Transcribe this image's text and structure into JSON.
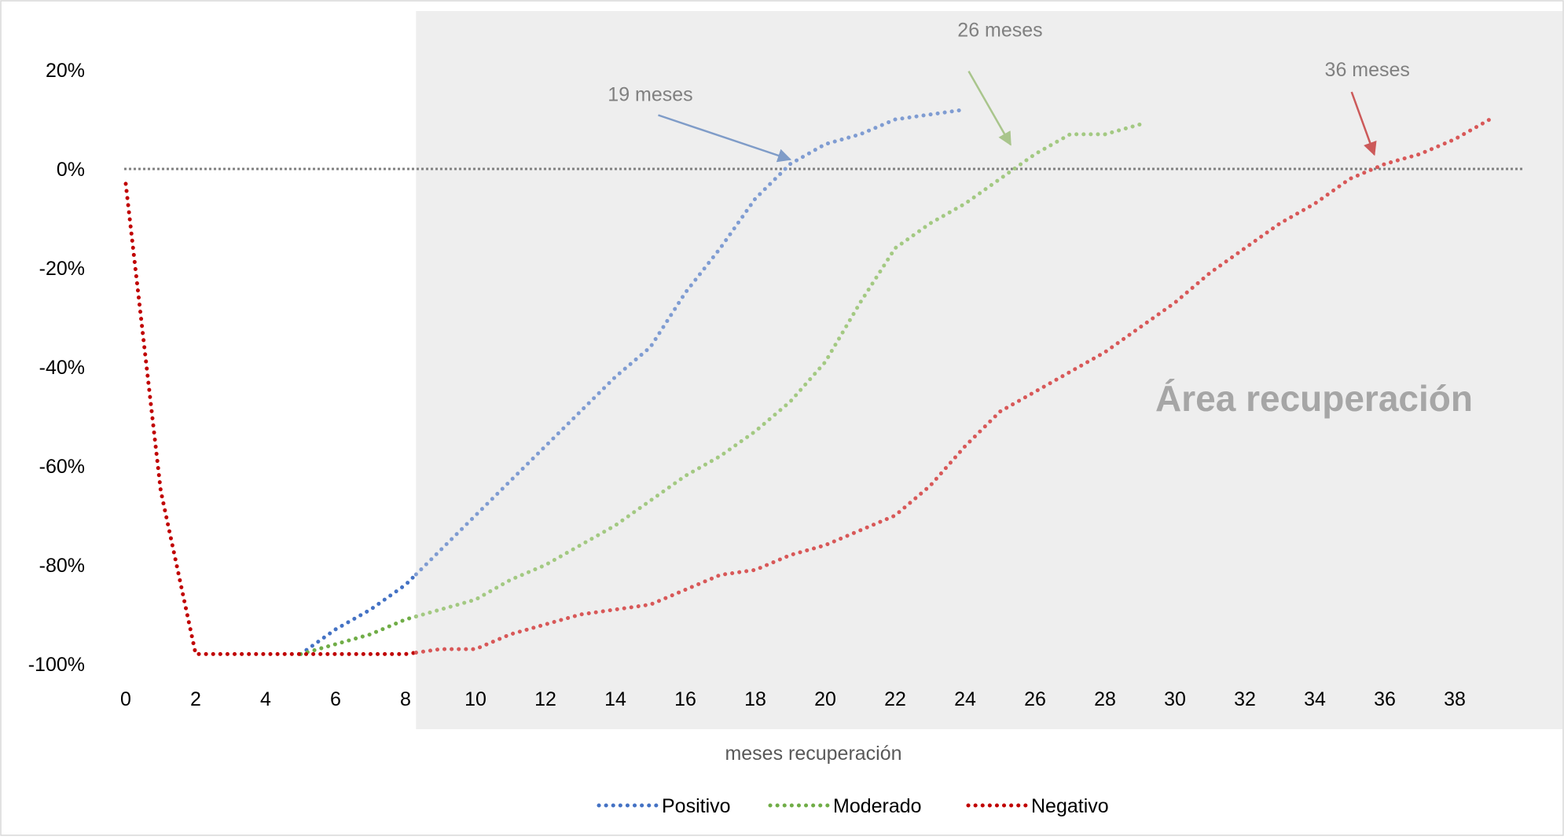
{
  "chart_data": {
    "type": "line",
    "xlabel": "meses recuperación",
    "ylabel": "",
    "xlim": [
      0,
      40
    ],
    "ylim": [
      -100,
      20
    ],
    "x_ticks": [
      0,
      2,
      4,
      6,
      8,
      10,
      12,
      14,
      16,
      18,
      20,
      22,
      24,
      26,
      28,
      30,
      32,
      34,
      36,
      38
    ],
    "y_ticks": [
      -100,
      -80,
      -60,
      -40,
      -20,
      0,
      20
    ],
    "y_tick_format": "percent",
    "grid": false,
    "legend_position": "bottom",
    "reference_line": {
      "y": 0,
      "style": "dotted",
      "color": "#808080"
    },
    "shaded_region": {
      "x_start": 8.3,
      "x_end": 40,
      "label": "Área recuperación",
      "color": "#eeeeee",
      "label_color": "#a6a6a6"
    },
    "annotations": [
      {
        "text": "19 meses",
        "x": 19,
        "y": 0,
        "text_x": 15,
        "text_y": 15,
        "color": "#7f9cc8"
      },
      {
        "text": "26 meses",
        "x": 25.3,
        "y": 3,
        "text_x": 25,
        "text_y": 28,
        "color": "#a9c58c"
      },
      {
        "text": "36 meses",
        "x": 35.7,
        "y": 1,
        "text_x": 35.5,
        "text_y": 20,
        "color": "#cc5a5a"
      }
    ],
    "series": [
      {
        "name": "Positivo",
        "color": "#4472c4",
        "color_shaded": "#7f9cd2",
        "x": [
          5,
          6,
          7,
          8,
          9,
          10,
          11,
          12,
          13,
          14,
          15,
          16,
          17,
          18,
          19,
          20,
          21,
          22,
          23,
          24
        ],
        "values": [
          -98,
          -93,
          -89,
          -84,
          -77,
          -70,
          -63,
          -56,
          -49,
          -42,
          -36,
          -25,
          -16,
          -6,
          1,
          5,
          7,
          10,
          11,
          12
        ]
      },
      {
        "name": "Moderado",
        "color": "#70ad47",
        "color_shaded": "#a3c982",
        "x": [
          5,
          6,
          7,
          8,
          9,
          10,
          11,
          12,
          13,
          14,
          15,
          16,
          17,
          18,
          19,
          20,
          21,
          22,
          23,
          24,
          25,
          26,
          27,
          28,
          29
        ],
        "values": [
          -98,
          -96,
          -94,
          -91,
          -89,
          -87,
          -83,
          -80,
          -76,
          -72,
          -67,
          -62,
          -58,
          -53,
          -47,
          -39,
          -27,
          -16,
          -11,
          -7,
          -2,
          3,
          7,
          7,
          9
        ]
      },
      {
        "name": "Negativo",
        "color": "#c00000",
        "color_shaded": "#d85858",
        "x": [
          0,
          1,
          2,
          3,
          4,
          5,
          6,
          7,
          8,
          9,
          10,
          11,
          12,
          13,
          14,
          15,
          16,
          17,
          18,
          19,
          20,
          21,
          22,
          23,
          24,
          25,
          26,
          27,
          28,
          29,
          30,
          31,
          32,
          33,
          34,
          35,
          36,
          37,
          38,
          39
        ],
        "values": [
          -3,
          -65,
          -98,
          -98,
          -98,
          -98,
          -98,
          -98,
          -98,
          -97,
          -97,
          -94,
          -92,
          -90,
          -89,
          -88,
          -85,
          -82,
          -81,
          -78,
          -76,
          -73,
          -70,
          -64,
          -56,
          -49,
          -45,
          -41,
          -37,
          -32,
          -27,
          -21,
          -16,
          -11,
          -7,
          -2,
          1,
          3,
          6,
          10
        ]
      }
    ]
  }
}
